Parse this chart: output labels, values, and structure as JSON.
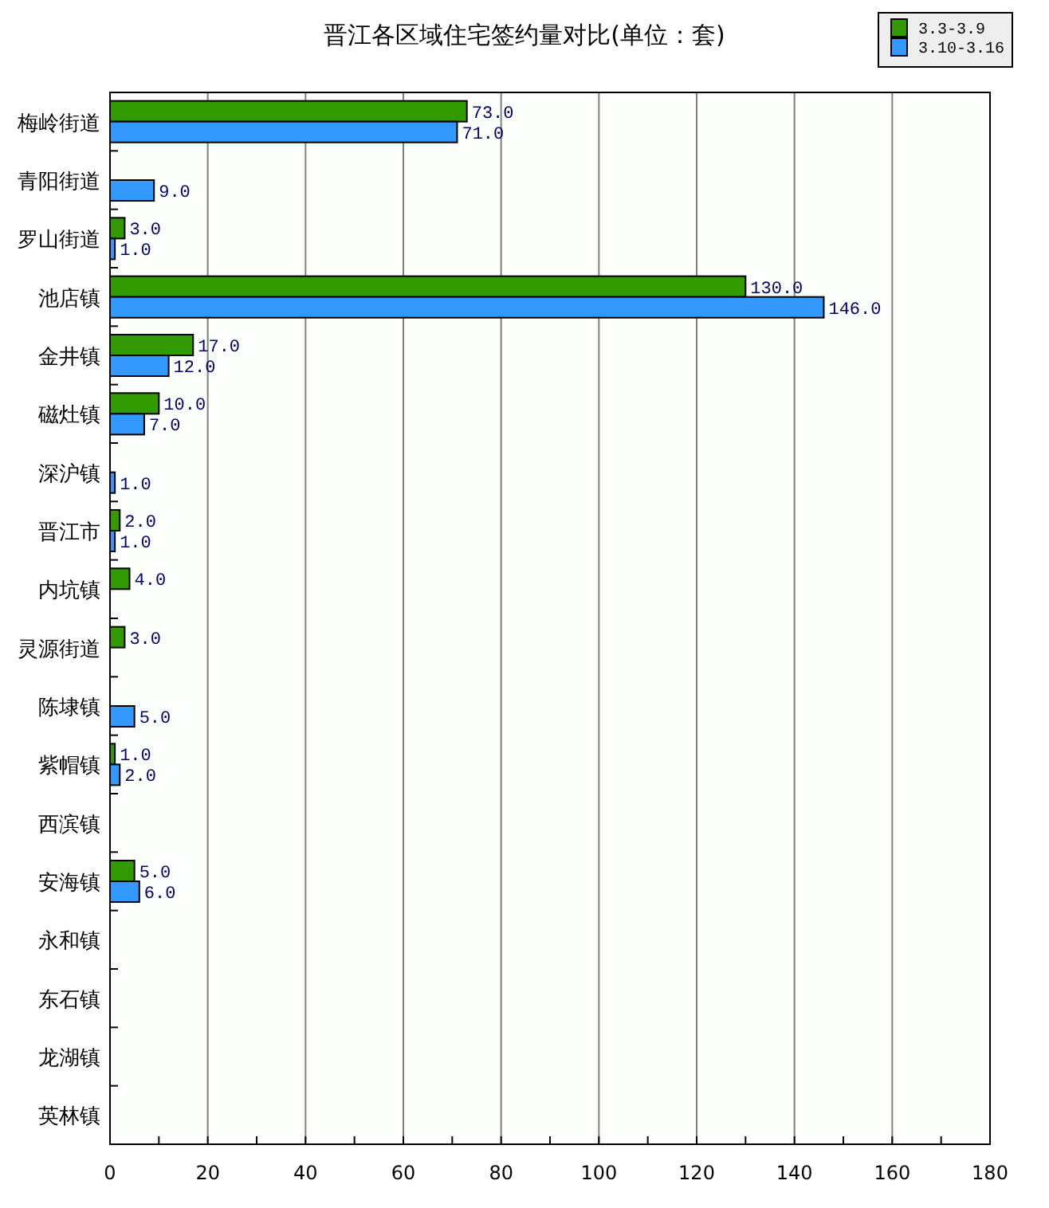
{
  "chart_data": {
    "type": "bar",
    "orientation": "horizontal",
    "title": "晋江各区域住宅签约量对比(单位：套)",
    "categories": [
      "梅岭街道",
      "青阳街道",
      "罗山街道",
      "池店镇",
      "金井镇",
      "磁灶镇",
      "深沪镇",
      "晋江市",
      "内坑镇",
      "灵源街道",
      "陈埭镇",
      "紫帽镇",
      "西滨镇",
      "安海镇",
      "永和镇",
      "东石镇",
      "龙湖镇",
      "英林镇"
    ],
    "series": [
      {
        "name": "3.3-3.9",
        "color": "#339900",
        "values": [
          73,
          null,
          3,
          130,
          17,
          10,
          null,
          2,
          4,
          3,
          null,
          1,
          null,
          5,
          null,
          null,
          null,
          null
        ],
        "value_labels": [
          "73.0",
          null,
          "3.0",
          "130.0",
          "17.0",
          "10.0",
          null,
          "2.0",
          "4.0",
          "3.0",
          null,
          "1.0",
          null,
          "5.0",
          null,
          null,
          null,
          null
        ]
      },
      {
        "name": "3.10-3.16",
        "color": "#3399ff",
        "values": [
          71,
          9,
          1,
          146,
          12,
          7,
          1,
          1,
          null,
          null,
          5,
          2,
          null,
          6,
          null,
          null,
          null,
          null
        ],
        "value_labels": [
          "71.0",
          "9.0",
          "1.0",
          "146.0",
          "12.0",
          "7.0",
          "1.0",
          "1.0",
          null,
          null,
          "5.0",
          "2.0",
          null,
          "6.0",
          null,
          null,
          null,
          null
        ]
      }
    ],
    "xlim": [
      0,
      180
    ],
    "xticks": [
      0,
      {
        "value": 10,
        "label": null
      },
      20,
      {
        "value": 30,
        "label": null
      },
      40,
      {
        "value": 50,
        "label": null
      },
      60,
      {
        "value": 70,
        "label": null
      },
      80,
      {
        "value": 90,
        "label": null
      },
      100,
      {
        "value": 110,
        "label": null
      },
      120,
      {
        "value": 130,
        "label": null
      },
      140,
      {
        "value": 150,
        "label": null
      },
      160,
      {
        "value": 170,
        "label": null
      },
      180
    ],
    "grid": "x",
    "legend": "top right"
  }
}
